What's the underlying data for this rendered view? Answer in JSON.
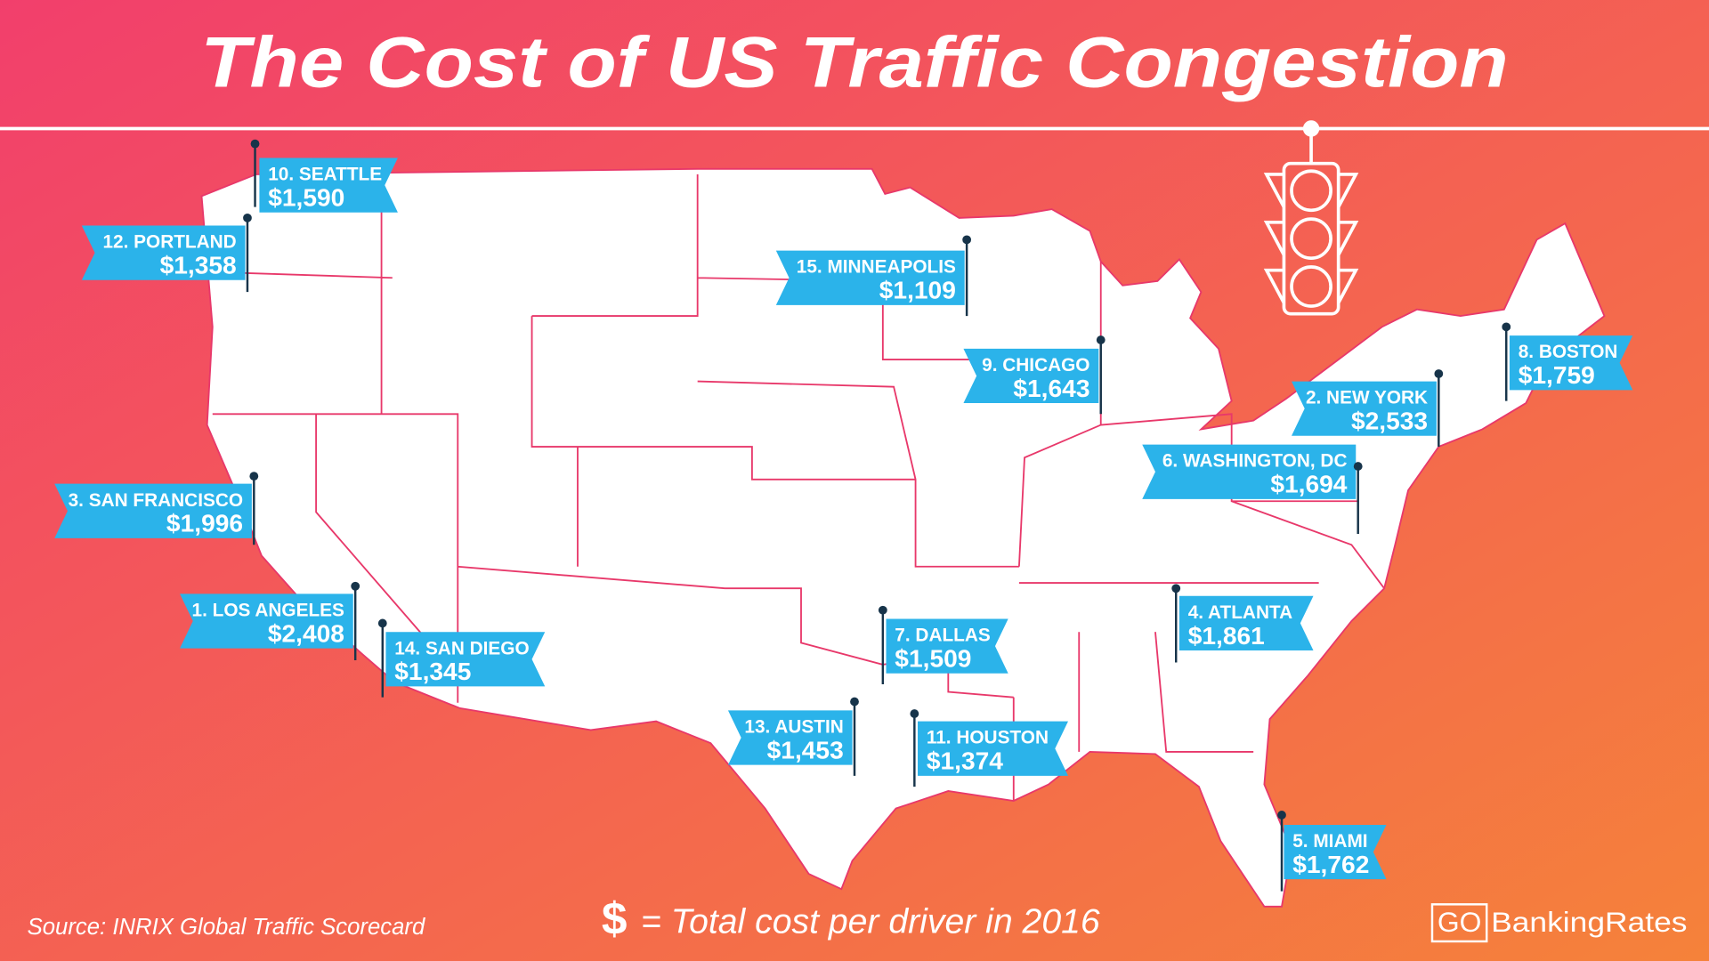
{
  "title": "The Cost of US Traffic Congestion",
  "cities": [
    {
      "label": "10. SEATTLE",
      "cost": "$1,590"
    },
    {
      "label": "12. PORTLAND",
      "cost": "$1,358"
    },
    {
      "label": "15. MINNEAPOLIS",
      "cost": "$1,109"
    },
    {
      "label": "9. CHICAGO",
      "cost": "$1,643"
    },
    {
      "label": "2. NEW YORK",
      "cost": "$2,533"
    },
    {
      "label": "8. BOSTON",
      "cost": "$1,759"
    },
    {
      "label": "6. WASHINGTON, DC",
      "cost": "$1,694"
    },
    {
      "label": "3. SAN FRANCISCO",
      "cost": "$1,996"
    },
    {
      "label": "1. LOS ANGELES",
      "cost": "$2,408"
    },
    {
      "label": "14. SAN DIEGO",
      "cost": "$1,345"
    },
    {
      "label": "7. DALLAS",
      "cost": "$1,509"
    },
    {
      "label": "4. ATLANTA",
      "cost": "$1,861"
    },
    {
      "label": "13. AUSTIN",
      "cost": "$1,453"
    },
    {
      "label": "11. HOUSTON",
      "cost": "$1,374"
    },
    {
      "label": "5. MIAMI",
      "cost": "$1,762"
    }
  ],
  "footer": {
    "source": "Source: INRIX Global Traffic Scorecard",
    "legend_symbol": "$",
    "legend_text": "= Total cost per driver in 2016",
    "logo_go": "GO",
    "logo_rest": "BankingRates"
  }
}
